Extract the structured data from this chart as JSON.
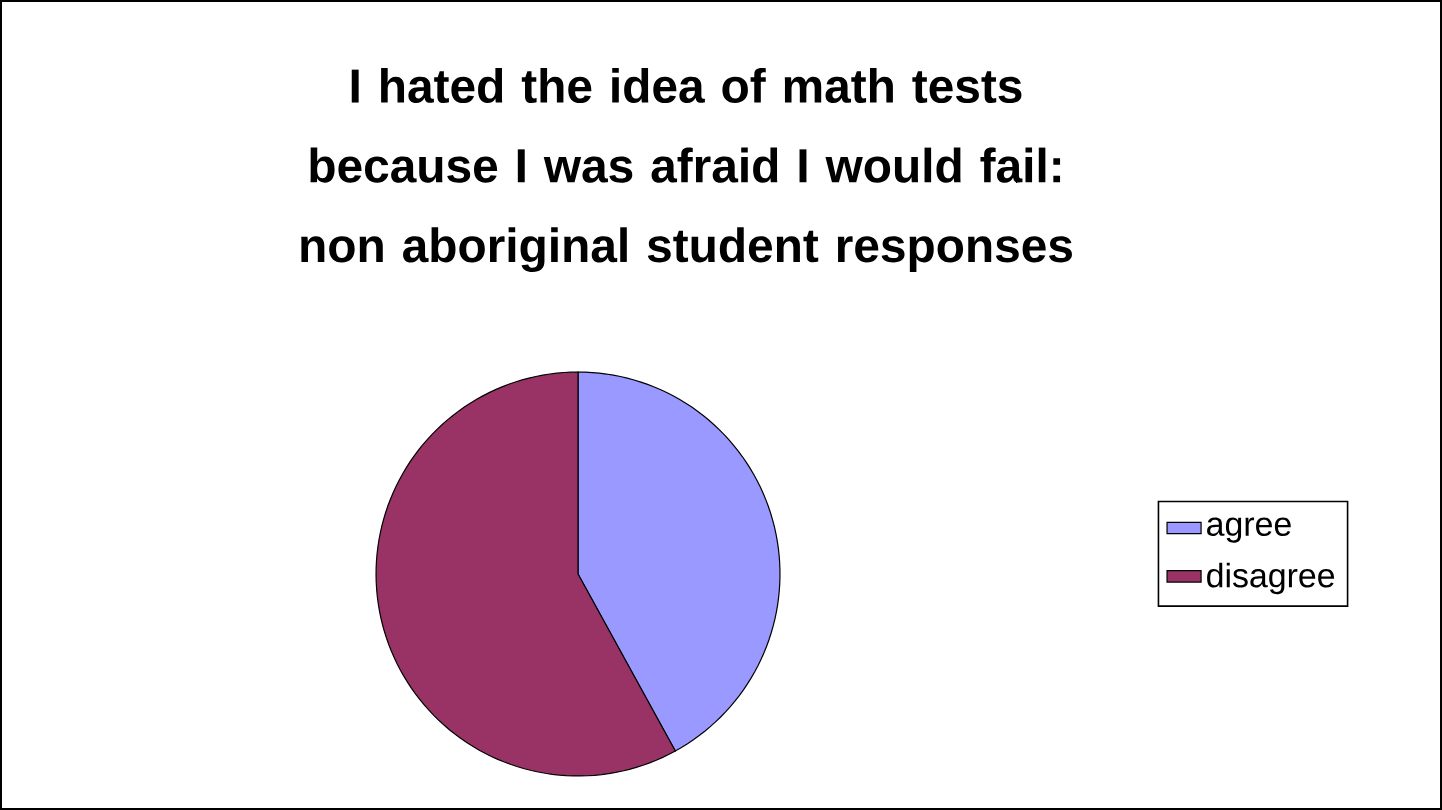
{
  "chart_data": {
    "type": "pie",
    "title": "I hated the idea of math tests because I was afraid I would fail: non aboriginal student responses",
    "categories": [
      "agree",
      "disagree"
    ],
    "values": [
      42,
      58
    ],
    "colors": [
      "#9999ff",
      "#993366"
    ],
    "legend": "right"
  }
}
